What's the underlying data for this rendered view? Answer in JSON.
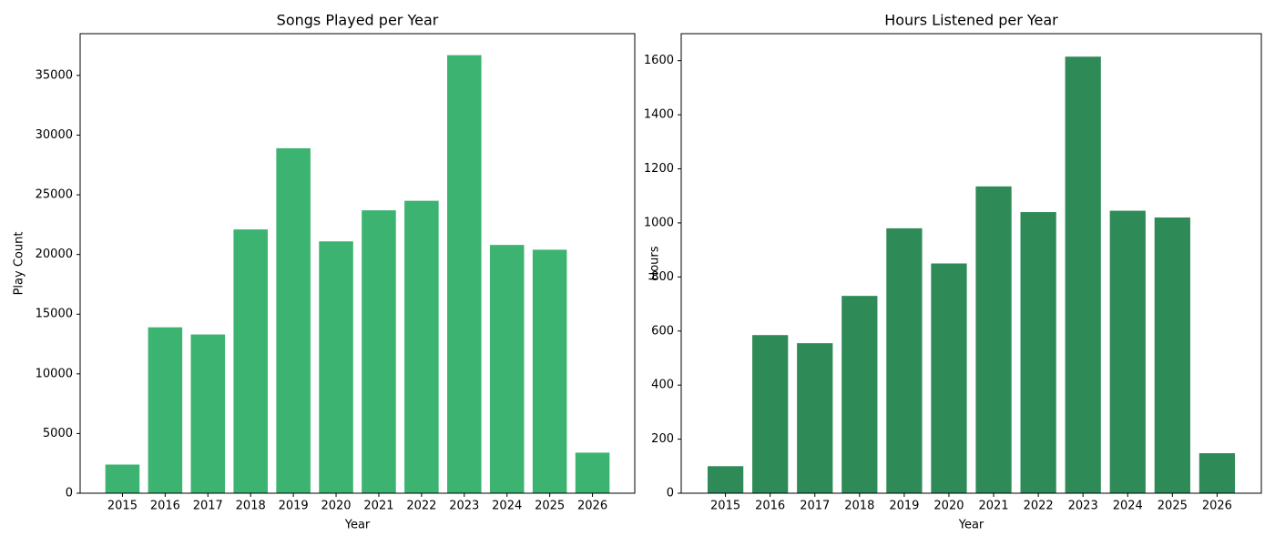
{
  "chart_data": [
    {
      "type": "bar",
      "title": "Songs Played per Year",
      "x_label": "Year",
      "y_label": "Play Count",
      "categories": [
        "2015",
        "2016",
        "2017",
        "2018",
        "2019",
        "2020",
        "2021",
        "2022",
        "2023",
        "2024",
        "2025",
        "2026"
      ],
      "values": [
        2400,
        13900,
        13300,
        22100,
        28900,
        21100,
        23700,
        24500,
        36700,
        20800,
        20400,
        3400
      ],
      "color": "#3cb371",
      "ylim": [
        0,
        38500
      ],
      "yticks": [
        0,
        5000,
        10000,
        15000,
        20000,
        25000,
        30000,
        35000
      ]
    },
    {
      "type": "bar",
      "title": "Hours Listened per Year",
      "x_label": "Year",
      "y_label": "Hours",
      "categories": [
        "2015",
        "2016",
        "2017",
        "2018",
        "2019",
        "2020",
        "2021",
        "2022",
        "2023",
        "2024",
        "2025",
        "2026"
      ],
      "values": [
        100,
        585,
        555,
        730,
        980,
        850,
        1135,
        1040,
        1615,
        1045,
        1020,
        148
      ],
      "color": "#2e8b57",
      "ylim": [
        0,
        1700
      ],
      "yticks": [
        0,
        200,
        400,
        600,
        800,
        1000,
        1200,
        1400,
        1600
      ]
    }
  ]
}
